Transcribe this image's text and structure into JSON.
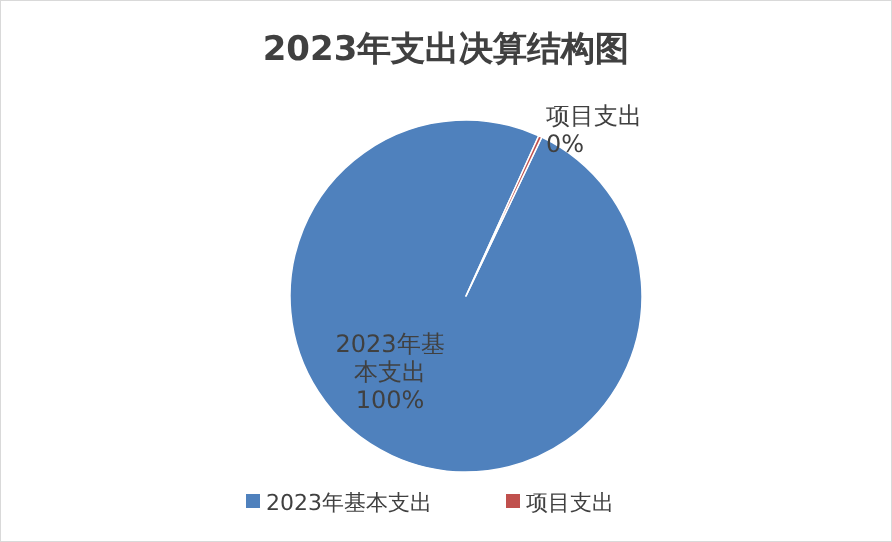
{
  "chart_data": {
    "type": "pie",
    "title": "2023年支出决算结构图",
    "categories": [
      "2023年基本支出",
      "项目支出"
    ],
    "values": [
      99.7,
      0.3
    ],
    "value_labels": [
      "100%",
      "0%"
    ],
    "colors": [
      "#4f81bd",
      "#c0504d"
    ],
    "legend": "bottom"
  }
}
